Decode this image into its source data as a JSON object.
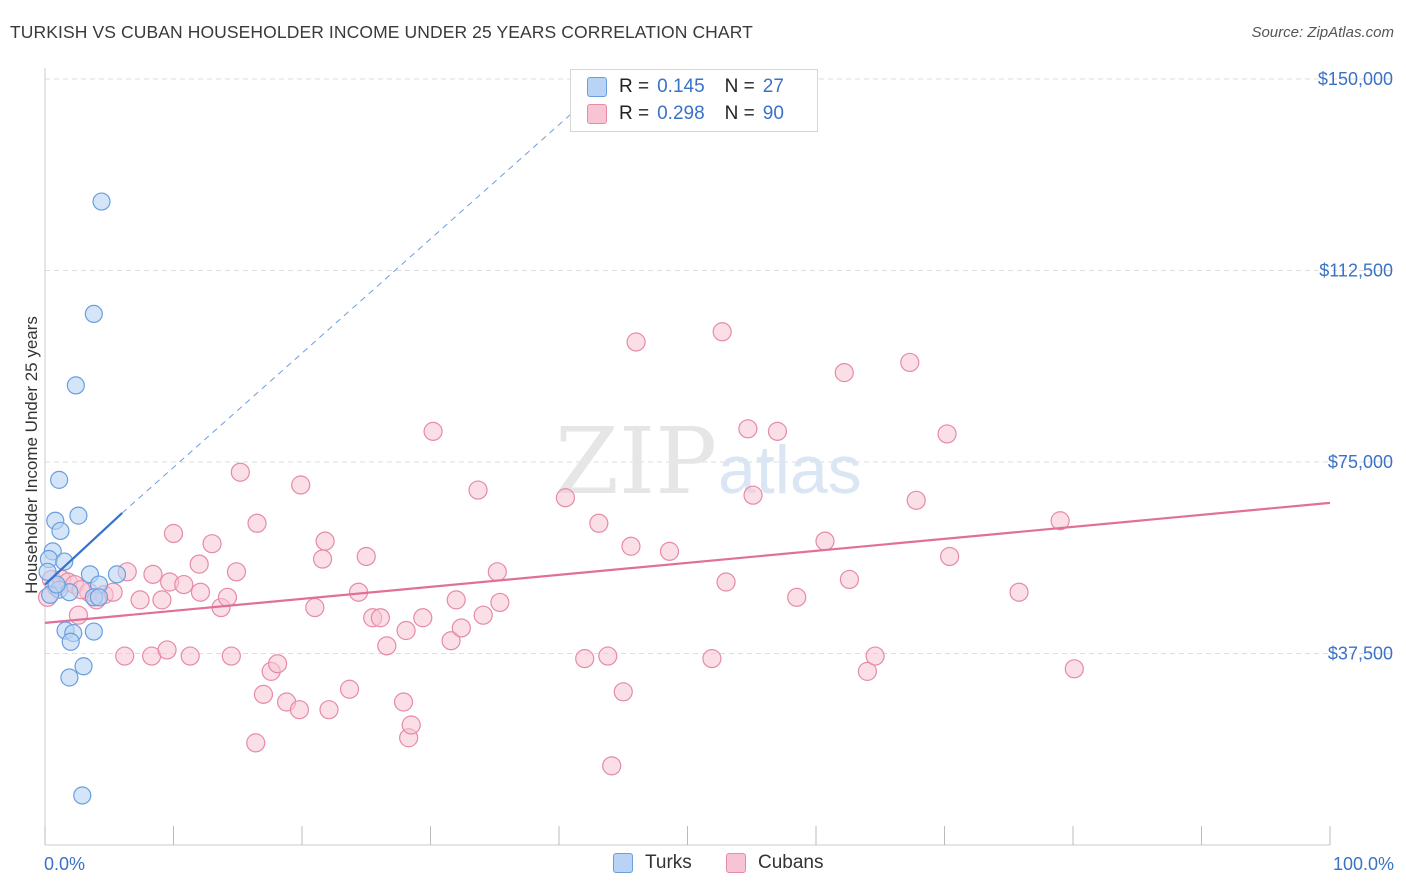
{
  "header": {
    "title": "TURKISH VS CUBAN HOUSEHOLDER INCOME UNDER 25 YEARS CORRELATION CHART",
    "source": "Source: ZipAtlas.com"
  },
  "legend_top": [
    {
      "r_label": "R =",
      "r_value": "0.145",
      "n_label": "N =",
      "n_value": "27"
    },
    {
      "r_label": "R =",
      "r_value": "0.298",
      "n_label": "N =",
      "n_value": "90"
    }
  ],
  "legend_bottom": {
    "turks": "Turks",
    "cubans": "Cubans"
  },
  "watermark": {
    "zip": "ZIP",
    "atlas": "atlas"
  },
  "colors": {
    "turks_fill": "#b8d3f4",
    "turks_stroke": "#6a9ee0",
    "turks_line": "#3472d0",
    "cubans_fill": "#f7c4d3",
    "cubans_stroke": "#e68aa8",
    "cubans_line": "#e0709a",
    "axis_label": "#3a72c7",
    "grid": "#dddddd"
  },
  "chart_data": {
    "type": "scatter",
    "title": "TURKISH VS CUBAN HOUSEHOLDER INCOME UNDER 25 YEARS CORRELATION CHART",
    "xlabel": "",
    "ylabel": "Householder Income Under 25 years",
    "xlim": [
      0,
      100
    ],
    "ylim": [
      0,
      157500
    ],
    "x_tick_labels": [
      "0.0%",
      "100.0%"
    ],
    "y_ticks": [
      37500,
      75000,
      112500,
      150000
    ],
    "y_tick_labels": [
      "$37,500",
      "$75,000",
      "$112,500",
      "$150,000"
    ],
    "legend_position": "bottom-center",
    "series": [
      {
        "name": "Turks",
        "R": 0.145,
        "N": 27,
        "trend": {
          "x": [
            0,
            6
          ],
          "y": [
            51000,
            65000
          ],
          "extended_to": [
            44,
            150000
          ]
        },
        "points": [
          [
            4.4,
            126000
          ],
          [
            3.8,
            104000
          ],
          [
            2.4,
            90000
          ],
          [
            1.1,
            71500
          ],
          [
            0.8,
            63500
          ],
          [
            2.6,
            64500
          ],
          [
            1.2,
            61500
          ],
          [
            0.6,
            57500
          ],
          [
            0.3,
            56000
          ],
          [
            1.5,
            55500
          ],
          [
            0.2,
            53500
          ],
          [
            3.5,
            53000
          ],
          [
            5.6,
            53000
          ],
          [
            4.2,
            51000
          ],
          [
            1.1,
            50000
          ],
          [
            1.9,
            49500
          ],
          [
            3.8,
            48500
          ],
          [
            4.2,
            48500
          ],
          [
            1.6,
            42000
          ],
          [
            2.2,
            41500
          ],
          [
            3.8,
            41800
          ],
          [
            2.0,
            39800
          ],
          [
            3.0,
            35000
          ],
          [
            1.9,
            32800
          ],
          [
            2.9,
            9700
          ],
          [
            0.4,
            49000
          ],
          [
            0.9,
            51000
          ]
        ]
      },
      {
        "name": "Cubans",
        "R": 0.298,
        "N": 90,
        "trend": {
          "x": [
            0,
            100
          ],
          "y": [
            43500,
            67000
          ]
        },
        "points": [
          [
            0.2,
            48500
          ],
          [
            0.5,
            52000
          ],
          [
            0.9,
            50500
          ],
          [
            1.3,
            52000
          ],
          [
            1.8,
            51500
          ],
          [
            2.3,
            51000
          ],
          [
            2.6,
            45000
          ],
          [
            3.4,
            49500
          ],
          [
            4.0,
            48000
          ],
          [
            4.6,
            49000
          ],
          [
            5.3,
            49500
          ],
          [
            6.4,
            53500
          ],
          [
            6.2,
            37000
          ],
          [
            7.4,
            48000
          ],
          [
            8.3,
            37000
          ],
          [
            8.4,
            53000
          ],
          [
            9.1,
            48000
          ],
          [
            9.5,
            38200
          ],
          [
            9.7,
            51500
          ],
          [
            10.0,
            61000
          ],
          [
            10.8,
            51000
          ],
          [
            11.3,
            37000
          ],
          [
            12.1,
            49500
          ],
          [
            12.0,
            55000
          ],
          [
            13.0,
            59000
          ],
          [
            13.7,
            46500
          ],
          [
            14.2,
            48500
          ],
          [
            14.5,
            37000
          ],
          [
            14.9,
            53500
          ],
          [
            15.2,
            73000
          ],
          [
            16.4,
            20000
          ],
          [
            16.5,
            63000
          ],
          [
            17.0,
            29500
          ],
          [
            17.6,
            34000
          ],
          [
            18.1,
            35500
          ],
          [
            18.8,
            28000
          ],
          [
            19.8,
            26500
          ],
          [
            19.9,
            70500
          ],
          [
            21.0,
            46500
          ],
          [
            21.6,
            56000
          ],
          [
            21.8,
            59500
          ],
          [
            22.1,
            26500
          ],
          [
            23.7,
            30500
          ],
          [
            24.4,
            49500
          ],
          [
            25.0,
            56500
          ],
          [
            25.5,
            44500
          ],
          [
            26.1,
            44500
          ],
          [
            26.6,
            39000
          ],
          [
            27.9,
            28000
          ],
          [
            28.1,
            42000
          ],
          [
            28.3,
            21000
          ],
          [
            28.5,
            23500
          ],
          [
            29.4,
            44500
          ],
          [
            30.2,
            81000
          ],
          [
            31.6,
            40000
          ],
          [
            32.0,
            48000
          ],
          [
            32.4,
            42500
          ],
          [
            33.7,
            69500
          ],
          [
            34.1,
            45000
          ],
          [
            35.2,
            53500
          ],
          [
            35.4,
            47500
          ],
          [
            40.5,
            68000
          ],
          [
            42.0,
            36500
          ],
          [
            43.1,
            63000
          ],
          [
            43.8,
            37000
          ],
          [
            44.1,
            15500
          ],
          [
            45.0,
            30000
          ],
          [
            45.6,
            58500
          ],
          [
            46.0,
            98500
          ],
          [
            48.6,
            57500
          ],
          [
            51.9,
            36500
          ],
          [
            52.7,
            100500
          ],
          [
            53.0,
            51500
          ],
          [
            54.7,
            81500
          ],
          [
            55.1,
            68500
          ],
          [
            57.0,
            81000
          ],
          [
            58.5,
            48500
          ],
          [
            60.7,
            59500
          ],
          [
            62.2,
            92500
          ],
          [
            62.6,
            52000
          ],
          [
            64.0,
            34000
          ],
          [
            64.6,
            37000
          ],
          [
            67.3,
            94500
          ],
          [
            67.8,
            67500
          ],
          [
            70.2,
            80500
          ],
          [
            70.4,
            56500
          ],
          [
            75.8,
            49500
          ],
          [
            79.0,
            63500
          ],
          [
            80.1,
            34500
          ],
          [
            2.8,
            50000
          ]
        ]
      }
    ]
  }
}
